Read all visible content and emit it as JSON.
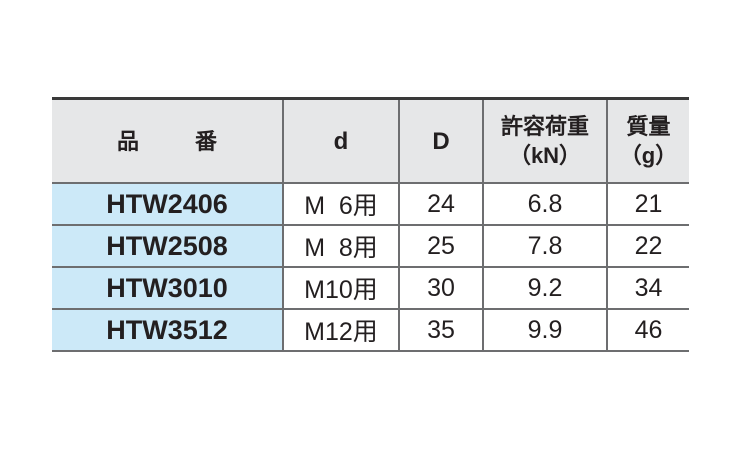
{
  "table": {
    "headers": {
      "part_no_1": "品",
      "part_no_2": "番",
      "d": "d",
      "D": "D",
      "load_1": "許容荷重",
      "load_2": "（kN）",
      "mass_1": "質量",
      "mass_2": "（g）"
    },
    "rows": [
      {
        "part_no": "HTW2406",
        "d": "M  6用",
        "D": "24",
        "load": "6.8",
        "mass": "21"
      },
      {
        "part_no": "HTW2508",
        "d": "M  8用",
        "D": "25",
        "load": "7.8",
        "mass": "22"
      },
      {
        "part_no": "HTW3010",
        "d": "M10用",
        "D": "30",
        "load": "9.2",
        "mass": "34"
      },
      {
        "part_no": "HTW3512",
        "d": "M12用",
        "D": "35",
        "load": "9.9",
        "mass": "46"
      }
    ],
    "colors": {
      "header_bg": "#e6e7e8",
      "part_no_bg": "#cce9f8",
      "border": "#6d6e70"
    }
  }
}
